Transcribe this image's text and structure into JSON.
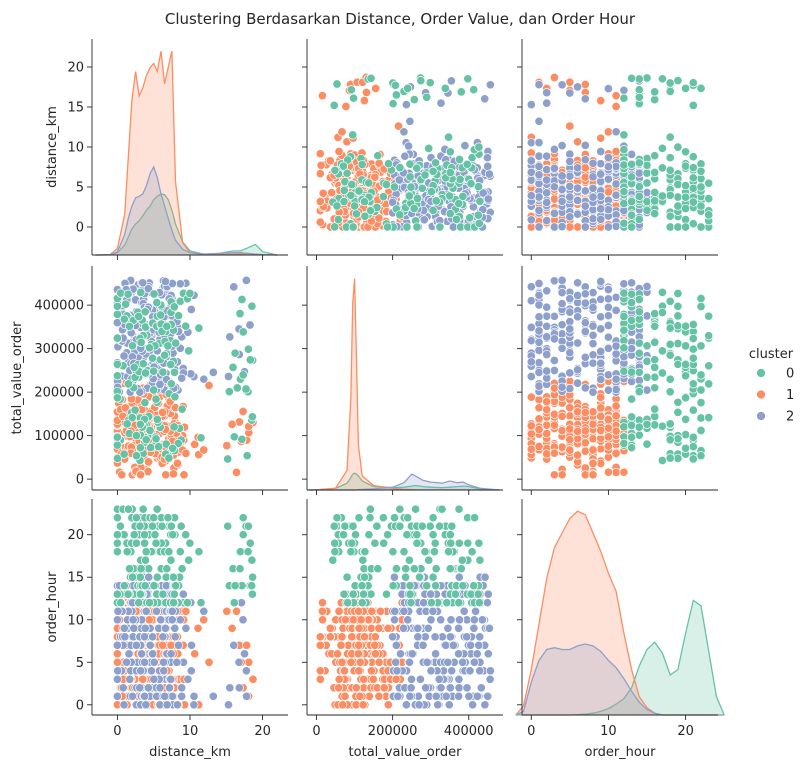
{
  "chart_data": {
    "type": "scatter",
    "title": "Clustering Berdasarkan Distance, Order Value, dan Order Hour",
    "variables": [
      {
        "name": "distance_km",
        "lim": [
          -3.5,
          23.5
        ],
        "ticks": [
          0,
          10,
          20
        ],
        "yticks": [
          0,
          5,
          10,
          15,
          20
        ]
      },
      {
        "name": "total_value_order",
        "lim": [
          -25000,
          490000
        ],
        "ticks": [
          0,
          200000,
          400000
        ],
        "yticks": [
          0,
          100000,
          200000,
          300000,
          400000
        ]
      },
      {
        "name": "order_hour",
        "lim": [
          -1.2,
          24.2
        ],
        "ticks": [
          0,
          10,
          20
        ],
        "yticks": [
          0,
          5,
          10,
          15,
          20
        ]
      }
    ],
    "legend": {
      "title": "cluster",
      "placement": "center-right",
      "entries": [
        "0",
        "1",
        "2"
      ]
    },
    "colors": {
      "0": "#66c2a5",
      "1": "#fc8d62",
      "2": "#8da0cb"
    },
    "clusters": [
      {
        "name": "0",
        "distance_km": [
          0,
          20
        ],
        "total_value_order": [
          20000,
          430000
        ],
        "order_hour": [
          0,
          23
        ],
        "note_peaks_hour": [
          15.5,
          21.5
        ]
      },
      {
        "name": "1",
        "distance_km": [
          0,
          21
        ],
        "total_value_order": [
          10000,
          220000
        ],
        "order_hour": [
          0,
          12
        ]
      },
      {
        "name": "2",
        "distance_km": [
          0,
          19
        ],
        "total_value_order": [
          200000,
          460000
        ],
        "order_hour": [
          0,
          15
        ]
      }
    ],
    "diagonal_kde": {
      "distance_km": {
        "x": [
          -3,
          -1,
          0,
          1,
          1.5,
          2,
          2.5,
          3,
          3.5,
          4,
          4.5,
          5,
          5.5,
          6,
          6.5,
          7,
          7.5,
          8,
          9,
          10,
          12,
          14,
          16,
          17,
          18,
          19,
          20,
          22
        ],
        "series": [
          {
            "name": "0",
            "y": [
              0,
              0.002,
              0.03,
              0.12,
              0.22,
              0.32,
              0.38,
              0.42,
              0.48,
              0.55,
              0.6,
              0.68,
              0.72,
              0.75,
              0.74,
              0.68,
              0.55,
              0.38,
              0.16,
              0.05,
              0.01,
              0.02,
              0.05,
              0.05,
              0.09,
              0.13,
              0.04,
              0
            ]
          },
          {
            "name": "1",
            "y": [
              0,
              0.005,
              0.08,
              0.5,
              1.2,
              1.9,
              2.25,
              1.95,
              2.05,
              2.2,
              2.3,
              2.35,
              2.25,
              2.5,
              2.1,
              2.3,
              2.5,
              0.9,
              0.15,
              0.03,
              0.01,
              0.005,
              0.01,
              0.015,
              0.02,
              0.01,
              0.005,
              0
            ]
          },
          {
            "name": "2",
            "y": [
              0,
              0.003,
              0.04,
              0.25,
              0.45,
              0.6,
              0.7,
              0.72,
              0.75,
              0.85,
              1.0,
              1.08,
              0.95,
              0.75,
              0.6,
              0.45,
              0.3,
              0.18,
              0.07,
              0.03,
              0.01,
              0.02,
              0.03,
              0.03,
              0.02,
              0.01,
              0.005,
              0
            ]
          }
        ]
      },
      "total_value_order": {
        "x": [
          -20000,
          0,
          50000,
          80000,
          90000,
          95000,
          100000,
          105000,
          110000,
          120000,
          150000,
          200000,
          230000,
          250000,
          260000,
          280000,
          300000,
          330000,
          350000,
          370000,
          385000,
          400000,
          430000,
          480000
        ],
        "series": [
          {
            "name": "0",
            "y": [
              0,
              0.002,
              0.03,
              0.12,
              0.22,
              0.28,
              0.3,
              0.28,
              0.25,
              0.16,
              0.06,
              0.04,
              0.05,
              0.07,
              0.08,
              0.06,
              0.05,
              0.04,
              0.05,
              0.06,
              0.07,
              0.06,
              0.02,
              0
            ]
          },
          {
            "name": "1",
            "y": [
              0,
              0.003,
              0.03,
              0.35,
              1.6,
              3.3,
              3.75,
              2.3,
              0.8,
              0.25,
              0.08,
              0.03,
              0.01,
              0.005,
              0.003,
              0.002,
              0.002,
              0.001,
              0.001,
              0.001,
              0.001,
              0.001,
              0,
              0
            ]
          },
          {
            "name": "2",
            "y": [
              0,
              0,
              0,
              0,
              0,
              0,
              0,
              0,
              0.005,
              0.01,
              0.02,
              0.05,
              0.13,
              0.28,
              0.25,
              0.17,
              0.14,
              0.12,
              0.16,
              0.13,
              0.14,
              0.09,
              0.03,
              0
            ]
          }
        ]
      },
      "order_hour": {
        "x": [
          -2,
          -1,
          0,
          1,
          2,
          3,
          4,
          5,
          6,
          7,
          8,
          9,
          10,
          11,
          12,
          13,
          14,
          15,
          16,
          17,
          18,
          19,
          20,
          21,
          22,
          23,
          24,
          25
        ],
        "series": [
          {
            "name": "0",
            "y": [
              0,
              0,
              0,
              0,
              0,
              0,
              0,
              0,
              0.002,
              0.005,
              0.01,
              0.02,
              0.035,
              0.06,
              0.09,
              0.15,
              0.27,
              0.36,
              0.4,
              0.34,
              0.22,
              0.25,
              0.45,
              0.63,
              0.6,
              0.35,
              0.1,
              0
            ]
          },
          {
            "name": "1",
            "y": [
              0,
              0.05,
              0.25,
              0.5,
              0.75,
              0.92,
              1.0,
              1.08,
              1.12,
              1.1,
              1.0,
              0.9,
              0.78,
              0.68,
              0.45,
              0.25,
              0.1,
              0.04,
              0.01,
              0,
              0,
              0,
              0,
              0,
              0,
              0,
              0,
              0
            ]
          },
          {
            "name": "2",
            "y": [
              0,
              0.02,
              0.18,
              0.3,
              0.36,
              0.37,
              0.36,
              0.36,
              0.38,
              0.39,
              0.38,
              0.35,
              0.3,
              0.26,
              0.2,
              0.13,
              0.07,
              0.03,
              0.01,
              0,
              0,
              0,
              0,
              0,
              0,
              0,
              0,
              0
            ]
          }
        ]
      }
    }
  }
}
